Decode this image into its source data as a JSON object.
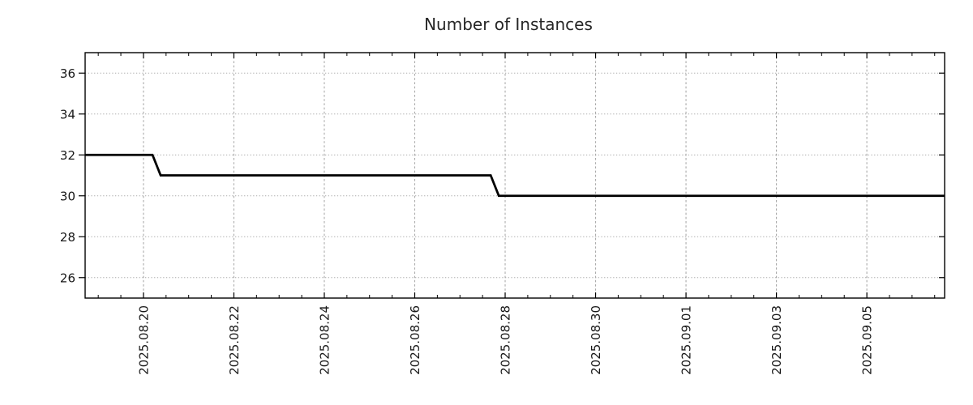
{
  "colors": {
    "background": "#ffffff",
    "line": "#000000",
    "grid": "#aaaaaa",
    "axis": "#000000",
    "text": "#1a1a1a"
  },
  "chart_data": {
    "type": "line",
    "title": "Number of Instances",
    "legend": false,
    "grid": true,
    "x_axis": {
      "unit": "date",
      "major_ticks": [
        {
          "label": "2025.08.20",
          "day": 0
        },
        {
          "label": "2025.08.22",
          "day": 2
        },
        {
          "label": "2025.08.24",
          "day": 4
        },
        {
          "label": "2025.08.26",
          "day": 6
        },
        {
          "label": "2025.08.28",
          "day": 8
        },
        {
          "label": "2025.08.30",
          "day": 10
        },
        {
          "label": "2025.09.01",
          "day": 12
        },
        {
          "label": "2025.09.03",
          "day": 14
        },
        {
          "label": "2025.09.05",
          "day": 16
        }
      ],
      "minor_tick_interval_days": 0.5,
      "xlim_days": [
        -1.29,
        17.72
      ],
      "label_rotation_deg": -90
    },
    "y_axis": {
      "ticks": [
        26,
        28,
        30,
        32,
        34,
        36
      ],
      "ylim": [
        25,
        37
      ]
    },
    "series": [
      {
        "name": "instances",
        "points": [
          {
            "date": "2025.08.18 ~17:00",
            "day": -1.29,
            "value": 32
          },
          {
            "date": "2025.08.20 ~05:00",
            "day": 0.2,
            "value": 32
          },
          {
            "date": "2025.08.20 ~09:00",
            "day": 0.38,
            "value": 31
          },
          {
            "date": "2025.08.27 ~16:00",
            "day": 7.68,
            "value": 31
          },
          {
            "date": "2025.08.27 ~21:00",
            "day": 7.86,
            "value": 30
          },
          {
            "date": "2025.09.06 ~17:00",
            "day": 17.72,
            "value": 30
          }
        ]
      }
    ]
  }
}
